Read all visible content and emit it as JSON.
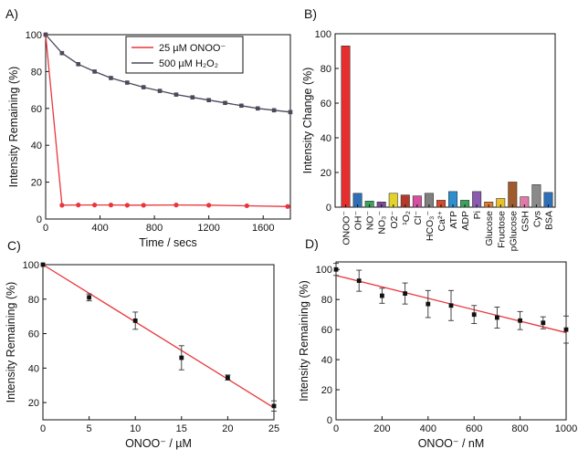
{
  "chart_data": [
    {
      "panel": "A)",
      "type": "line",
      "xlabel": "Time / secs",
      "ylabel": "Intensity Remaining (%)",
      "xlim": [
        0,
        1800
      ],
      "ylim": [
        0,
        100
      ],
      "xticks": [
        0,
        400,
        800,
        1200,
        1600
      ],
      "yticks": [
        0,
        20,
        40,
        60,
        80,
        100
      ],
      "legend_position": "top-right",
      "series": [
        {
          "name": "25 µM ONOO⁻",
          "color": "#e8363c",
          "marker": "circle",
          "x": [
            0,
            120,
            240,
            360,
            480,
            600,
            720,
            960,
            1200,
            1480,
            1780
          ],
          "y": [
            100,
            7.5,
            7.6,
            7.6,
            7.6,
            7.5,
            7.5,
            7.6,
            7.5,
            7.2,
            6.8
          ]
        },
        {
          "name": "500 µM H₂O₂",
          "color": "#4a4a5a",
          "marker": "square",
          "x": [
            0,
            120,
            240,
            360,
            480,
            600,
            720,
            840,
            960,
            1080,
            1200,
            1320,
            1440,
            1560,
            1680,
            1800
          ],
          "y": [
            100,
            90,
            84,
            80,
            76.5,
            74,
            71.5,
            69.5,
            67.5,
            66,
            64.5,
            63,
            61.5,
            60,
            59,
            58
          ]
        }
      ]
    },
    {
      "panel": "B)",
      "type": "bar",
      "ylabel": "Intensity Change (%)",
      "ylim": [
        0,
        100
      ],
      "yticks": [
        0,
        20,
        40,
        60,
        80,
        100
      ],
      "categories": [
        "ONOO⁻",
        "OH⁻",
        "NO⁻",
        "NO₃⁻",
        "O2⁻",
        "¹O₂",
        "Cl⁻",
        "HCO₃⁻",
        "Ca²⁺",
        "ATP",
        "ADP",
        "Pi",
        "Glucose",
        "Fructose",
        "pGlucose",
        "GSH",
        "Cys",
        "BSA"
      ],
      "values": [
        93,
        8,
        3.5,
        3,
        8,
        7,
        6.5,
        8,
        4,
        9,
        4,
        9,
        3,
        5,
        14.5,
        6,
        13,
        8.5
      ],
      "colors": [
        "#e62e2e",
        "#2f6fb7",
        "#3aa35a",
        "#7b4a9e",
        "#e3d22a",
        "#b5392b",
        "#d64fa0",
        "#7f7f7f",
        "#d44a2e",
        "#2e8fd0",
        "#3aa35a",
        "#8a5bb0",
        "#e07a2e",
        "#e8c02a",
        "#a05a2c",
        "#e07aa8",
        "#8a8a8a",
        "#2f6fb7"
      ]
    },
    {
      "panel": "C)",
      "type": "scatter",
      "xlabel": "ONOO⁻ / µM",
      "ylabel": "Intensity Remaining (%)",
      "xlim": [
        0,
        25
      ],
      "ylim": [
        10,
        100
      ],
      "xticks": [
        0,
        5,
        10,
        15,
        20,
        25
      ],
      "yticks": [
        20,
        40,
        60,
        80,
        100
      ],
      "points": {
        "x": [
          0,
          5,
          10,
          15,
          20,
          25
        ],
        "y": [
          100,
          81,
          67.5,
          46,
          34.5,
          18
        ],
        "err": [
          0,
          2,
          5,
          7,
          1.5,
          3
        ]
      },
      "fit_line": {
        "x": [
          0,
          25
        ],
        "y": [
          100,
          17
        ],
        "color": "#e8363c"
      }
    },
    {
      "panel": "D)",
      "type": "scatter",
      "xlabel": "ONOO⁻ / nM",
      "ylabel": "Intensity Remaining (%)",
      "xlim": [
        0,
        1000
      ],
      "ylim": [
        0,
        105
      ],
      "xticks": [
        0,
        200,
        400,
        600,
        800,
        1000
      ],
      "yticks": [
        0,
        20,
        40,
        60,
        80,
        100
      ],
      "points": {
        "x": [
          0,
          100,
          200,
          300,
          400,
          500,
          600,
          700,
          800,
          900,
          1000
        ],
        "y": [
          100,
          92.5,
          82.5,
          84,
          77,
          76,
          70,
          68,
          66,
          64.5,
          60
        ],
        "err": [
          4,
          7,
          5,
          7,
          9,
          10,
          6,
          7,
          6,
          4,
          9
        ]
      },
      "fit_line": {
        "x": [
          0,
          1000
        ],
        "y": [
          96,
          58
        ],
        "color": "#e8363c"
      }
    }
  ]
}
